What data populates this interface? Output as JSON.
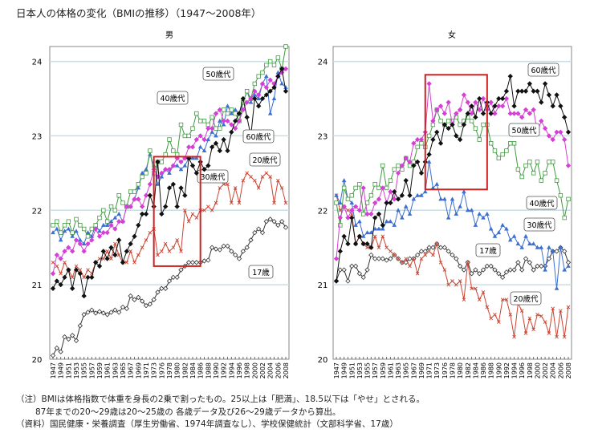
{
  "title": "日本人の体格の変化（BMIの推移）（1947〜2008年）",
  "notes": [
    "（注）BMIは体格指数で体重を身長の2乗で割ったもの。25以上は「肥満」、18.5以下は「やせ」とされる。",
    "87年までの20〜29歳は20〜25歳の 各歳データ及び26〜29歳データから算出。",
    "（資料）国民健康・栄養調査（厚生労働省、1974年調査なし）、学校保健統計（文部科学省、17歳）"
  ],
  "colors": {
    "17歳": "#333333",
    "20歳代": "#cc4433",
    "30歳代": "#3b6fd0",
    "40歳代": "#3f9a3f",
    "50歳代": "#d63fd6",
    "60歳代": "#111111",
    "highlight": "#cc2222",
    "grid": "#c9dde6"
  },
  "chart_data": [
    {
      "type": "line",
      "title": "男",
      "ylim": [
        20,
        24.2
      ],
      "yticks": [
        20,
        21,
        22,
        23,
        24
      ],
      "grid": true,
      "xticks": [
        1947,
        1949,
        1951,
        1953,
        1955,
        1957,
        1959,
        1961,
        1963,
        1965,
        1967,
        1969,
        1971,
        1973,
        1976,
        1978,
        1980,
        1982,
        1984,
        1986,
        1988,
        1990,
        1992,
        1994,
        1996,
        1998,
        2000,
        2002,
        2004,
        2006,
        2008
      ],
      "x": [
        1947,
        1948,
        1949,
        1950,
        1951,
        1952,
        1953,
        1954,
        1955,
        1956,
        1957,
        1958,
        1959,
        1960,
        1961,
        1962,
        1963,
        1964,
        1965,
        1966,
        1967,
        1968,
        1969,
        1970,
        1971,
        1972,
        1973,
        1975,
        1976,
        1977,
        1978,
        1979,
        1980,
        1981,
        1982,
        1983,
        1984,
        1985,
        1986,
        1987,
        1988,
        1989,
        1990,
        1991,
        1992,
        1993,
        1994,
        1995,
        1996,
        1997,
        1998,
        1999,
        2000,
        2001,
        2002,
        2003,
        2004,
        2005,
        2006,
        2007,
        2008
      ],
      "highlight_box": {
        "x": [
          1973,
          1986
        ],
        "y": [
          21.25,
          22.72
        ]
      },
      "series": [
        {
          "name": "17歳",
          "marker": "open-diamond",
          "values": [
            20.05,
            20.15,
            20.1,
            20.3,
            20.27,
            20.32,
            20.25,
            20.45,
            20.6,
            20.63,
            20.66,
            20.62,
            20.64,
            20.62,
            20.6,
            20.63,
            20.66,
            20.63,
            20.7,
            20.68,
            20.85,
            20.8,
            20.83,
            20.78,
            20.72,
            20.74,
            20.8,
            20.9,
            20.95,
            20.95,
            21.05,
            21.1,
            21.1,
            21.2,
            21.25,
            21.3,
            21.3,
            21.3,
            21.3,
            21.32,
            21.33,
            21.5,
            21.48,
            21.47,
            21.52,
            21.52,
            21.45,
            21.4,
            21.35,
            21.45,
            21.5,
            21.6,
            21.7,
            21.75,
            21.7,
            21.85,
            21.88,
            21.85,
            21.8,
            21.85,
            21.77
          ]
        },
        {
          "name": "20歳代",
          "marker": "x",
          "values": [
            21.3,
            21.25,
            21.15,
            21.3,
            21.2,
            21.1,
            21.25,
            21.2,
            21.1,
            21.2,
            21.15,
            21.3,
            21.35,
            21.35,
            21.45,
            21.35,
            21.55,
            21.4,
            21.3,
            21.3,
            21.45,
            21.3,
            21.4,
            21.5,
            21.6,
            21.7,
            21.75,
            21.4,
            21.45,
            21.55,
            21.45,
            21.5,
            21.6,
            21.45,
            22.0,
            21.85,
            21.95,
            21.9,
            22.0,
            22.0,
            22.05,
            22.0,
            22.1,
            22.3,
            22.35,
            22.35,
            22.1,
            22.3,
            22.1,
            22.4,
            22.5,
            22.45,
            22.4,
            22.3,
            22.45,
            22.5,
            22.45,
            22.1,
            22.4,
            22.3,
            22.1
          ]
        },
        {
          "name": "30歳代",
          "marker": "triangle",
          "values": [
            21.7,
            21.75,
            21.6,
            21.72,
            21.75,
            21.65,
            21.72,
            21.6,
            21.55,
            21.7,
            21.65,
            21.8,
            21.72,
            21.8,
            21.8,
            21.85,
            21.9,
            21.95,
            21.85,
            22.05,
            22.05,
            22.15,
            22.3,
            22.5,
            22.55,
            22.75,
            22.6,
            22.35,
            22.45,
            22.55,
            22.5,
            22.6,
            22.6,
            22.55,
            22.6,
            22.7,
            22.7,
            22.7,
            22.85,
            22.8,
            22.95,
            23.05,
            23.0,
            23.2,
            23.15,
            23.4,
            23.3,
            23.35,
            23.3,
            23.45,
            23.6,
            23.45,
            23.55,
            23.5,
            23.7,
            23.8,
            23.3,
            23.5,
            23.85,
            23.7,
            23.65
          ]
        },
        {
          "name": "40歳代",
          "marker": "open-square",
          "values": [
            21.8,
            21.85,
            21.7,
            21.8,
            21.85,
            21.7,
            21.88,
            21.8,
            21.75,
            21.65,
            21.75,
            21.8,
            21.9,
            22.0,
            21.85,
            22.05,
            22.0,
            22.2,
            22.1,
            22.05,
            22.25,
            22.25,
            22.35,
            22.45,
            22.5,
            22.8,
            22.5,
            22.65,
            22.65,
            22.75,
            22.95,
            22.8,
            22.75,
            23.15,
            23.0,
            23.0,
            23.1,
            23.3,
            23.2,
            23.2,
            23.15,
            23.25,
            23.1,
            23.1,
            23.35,
            23.3,
            23.35,
            23.3,
            23.2,
            23.45,
            23.6,
            23.5,
            23.7,
            23.8,
            23.85,
            23.95,
            24.0,
            23.95,
            24.05,
            23.9,
            24.2
          ]
        },
        {
          "name": "50歳代",
          "marker": "diamond",
          "values": [
            21.15,
            21.4,
            21.35,
            21.45,
            21.5,
            21.45,
            21.6,
            21.55,
            21.45,
            21.55,
            21.6,
            21.75,
            21.65,
            21.7,
            21.7,
            21.8,
            21.75,
            21.85,
            21.85,
            22.05,
            22.05,
            22.15,
            22.15,
            22.05,
            22.2,
            22.35,
            22.55,
            22.45,
            22.5,
            22.55,
            22.55,
            22.6,
            22.7,
            22.65,
            22.7,
            22.85,
            22.85,
            22.95,
            23.0,
            22.95,
            23.1,
            23.1,
            23.3,
            23.35,
            23.2,
            23.2,
            23.15,
            23.1,
            23.2,
            23.35,
            23.45,
            23.5,
            23.6,
            23.55,
            23.7,
            23.65,
            23.75,
            23.7,
            23.8,
            23.85,
            23.9
          ]
        },
        {
          "name": "60歳代",
          "marker": "diamond",
          "values": [
            20.95,
            21.05,
            21.0,
            21.1,
            21.2,
            20.95,
            21.2,
            21.15,
            20.85,
            21.1,
            21.1,
            21.3,
            21.25,
            21.45,
            21.35,
            21.5,
            21.4,
            21.6,
            21.3,
            21.45,
            21.55,
            21.65,
            21.8,
            21.95,
            21.95,
            22.2,
            22.05,
            22.65,
            21.95,
            22.05,
            22.3,
            22.35,
            22.05,
            22.3,
            22.2,
            22.7,
            22.6,
            22.5,
            22.65,
            22.55,
            22.6,
            22.85,
            22.9,
            22.8,
            22.95,
            22.8,
            23.05,
            23.2,
            23.3,
            23.5,
            23.25,
            23.0,
            23.5,
            23.4,
            23.5,
            23.55,
            23.6,
            23.65,
            23.8,
            23.9,
            23.6
          ]
        }
      ]
    },
    {
      "type": "line",
      "title": "女",
      "ylim": [
        20,
        24.2
      ],
      "yticks": [
        20,
        21,
        22,
        23,
        24
      ],
      "grid": true,
      "xticks": [
        1947,
        1949,
        1951,
        1953,
        1955,
        1957,
        1959,
        1961,
        1963,
        1965,
        1967,
        1969,
        1971,
        1973,
        1976,
        1978,
        1980,
        1982,
        1984,
        1986,
        1988,
        1990,
        1992,
        1994,
        1996,
        1998,
        2000,
        2002,
        2004,
        2006,
        2008
      ],
      "x": [
        1947,
        1948,
        1949,
        1950,
        1951,
        1952,
        1953,
        1954,
        1955,
        1956,
        1957,
        1958,
        1959,
        1960,
        1961,
        1962,
        1963,
        1964,
        1965,
        1966,
        1967,
        1968,
        1969,
        1970,
        1971,
        1972,
        1973,
        1975,
        1976,
        1977,
        1978,
        1979,
        1980,
        1981,
        1982,
        1983,
        1984,
        1985,
        1986,
        1987,
        1988,
        1989,
        1990,
        1991,
        1992,
        1993,
        1994,
        1995,
        1996,
        1997,
        1998,
        1999,
        2000,
        2001,
        2002,
        2003,
        2004,
        2005,
        2006,
        2007,
        2008
      ],
      "highlight_box": {
        "x": [
          1970,
          1987
        ],
        "y": [
          22.28,
          23.82
        ]
      },
      "series": [
        {
          "name": "17歳",
          "marker": "open-diamond",
          "values": [
            21.05,
            21.2,
            21.2,
            21.05,
            21.25,
            21.25,
            21.15,
            21.1,
            21.2,
            21.4,
            21.35,
            21.35,
            21.35,
            21.33,
            21.35,
            21.4,
            21.35,
            21.3,
            21.3,
            21.35,
            21.35,
            21.4,
            21.45,
            21.45,
            21.5,
            21.5,
            21.55,
            21.5,
            21.5,
            21.45,
            21.4,
            21.35,
            21.25,
            21.2,
            21.3,
            21.15,
            21.2,
            21.15,
            21.2,
            21.25,
            21.25,
            21.2,
            21.15,
            21.1,
            21.17,
            21.2,
            21.2,
            21.3,
            21.2,
            21.35,
            21.3,
            21.2,
            21.25,
            21.25,
            21.25,
            21.35,
            21.45,
            21.45,
            21.5,
            21.45,
            21.3
          ]
        },
        {
          "name": "20歳代",
          "marker": "x",
          "values": [
            22.2,
            22.0,
            22.05,
            22.0,
            21.95,
            21.55,
            21.65,
            21.55,
            21.5,
            21.5,
            21.65,
            21.5,
            21.65,
            21.5,
            21.45,
            21.4,
            21.35,
            21.3,
            21.35,
            21.25,
            21.35,
            21.15,
            21.35,
            21.4,
            21.45,
            21.4,
            21.55,
            21.3,
            21.2,
            21.0,
            21.05,
            21.0,
            21.05,
            20.8,
            21.3,
            20.95,
            20.95,
            20.8,
            20.9,
            20.7,
            20.55,
            20.6,
            20.5,
            20.8,
            20.8,
            20.6,
            20.3,
            20.75,
            20.65,
            20.35,
            20.55,
            20.4,
            20.6,
            20.58,
            20.5,
            20.35,
            20.68,
            20.3,
            20.65,
            20.3,
            20.7
          ]
        },
        {
          "name": "30歳代",
          "marker": "triangle",
          "values": [
            22.2,
            22.1,
            22.4,
            22.15,
            22.1,
            21.8,
            21.85,
            21.65,
            21.7,
            21.7,
            21.75,
            21.75,
            21.75,
            21.85,
            21.85,
            21.8,
            22.0,
            21.9,
            22.05,
            21.95,
            22.15,
            22.2,
            22.2,
            22.25,
            22.65,
            22.3,
            22.35,
            22.15,
            22.15,
            21.9,
            22.15,
            21.95,
            22.05,
            22.25,
            22.0,
            22.0,
            21.8,
            21.95,
            21.9,
            21.95,
            21.75,
            21.65,
            21.7,
            21.8,
            21.75,
            21.6,
            21.65,
            21.55,
            21.5,
            21.65,
            21.55,
            21.55,
            21.5,
            21.5,
            21.2,
            21.5,
            21.45,
            20.95,
            21.5,
            21.2,
            21.25
          ]
        },
        {
          "name": "40歳代",
          "marker": "open-square",
          "values": [
            22.1,
            21.8,
            22.3,
            22.15,
            22.2,
            22.3,
            22.35,
            21.95,
            22.1,
            22.2,
            22.35,
            22.3,
            22.6,
            22.3,
            22.4,
            22.55,
            22.6,
            22.55,
            22.7,
            22.6,
            22.65,
            22.85,
            22.9,
            22.85,
            23.0,
            23.15,
            23.35,
            23.2,
            23.15,
            23.2,
            23.2,
            23.25,
            23.15,
            23.2,
            23.25,
            23.2,
            23.1,
            22.95,
            23.15,
            23.15,
            22.9,
            22.8,
            22.7,
            22.75,
            22.8,
            22.9,
            22.9,
            22.55,
            22.45,
            22.6,
            22.65,
            22.5,
            22.65,
            22.4,
            22.5,
            22.65,
            22.65,
            22.4,
            22.2,
            21.9,
            22.15
          ]
        },
        {
          "name": "50歳代",
          "marker": "diamond",
          "values": [
            21.35,
            21.9,
            22.05,
            21.9,
            22.0,
            22.05,
            22.0,
            22.3,
            21.95,
            21.95,
            22.1,
            22.15,
            22.3,
            22.1,
            22.25,
            22.15,
            22.5,
            22.6,
            22.7,
            22.65,
            22.9,
            22.95,
            22.95,
            23.05,
            23.7,
            23.2,
            23.35,
            23.4,
            23.3,
            23.45,
            23.15,
            23.3,
            23.35,
            23.55,
            23.45,
            23.3,
            23.45,
            23.35,
            23.5,
            23.35,
            23.45,
            23.3,
            23.4,
            23.4,
            23.5,
            23.3,
            23.3,
            23.3,
            23.25,
            23.35,
            23.3,
            23.35,
            23.05,
            23.2,
            23.1,
            23.0,
            22.95,
            23.05,
            23.05,
            22.95,
            22.6
          ]
        },
        {
          "name": "60歳代",
          "marker": "diamond",
          "values": [
            21.05,
            21.45,
            21.65,
            21.55,
            21.9,
            21.55,
            21.65,
            21.55,
            21.55,
            21.5,
            21.9,
            21.95,
            21.8,
            22.1,
            22.1,
            22.25,
            22.15,
            22.2,
            22.4,
            22.2,
            22.6,
            22.65,
            22.5,
            22.65,
            22.75,
            22.95,
            23.05,
            22.9,
            23.15,
            23.1,
            23.15,
            23.0,
            22.95,
            23.15,
            23.3,
            23.4,
            23.25,
            23.5,
            23.3,
            23.45,
            23.3,
            23.4,
            23.5,
            23.5,
            23.6,
            23.8,
            23.4,
            23.6,
            23.6,
            23.6,
            23.7,
            23.6,
            23.6,
            23.45,
            23.7,
            23.55,
            23.4,
            23.55,
            23.4,
            23.25,
            23.05
          ]
        }
      ]
    }
  ]
}
